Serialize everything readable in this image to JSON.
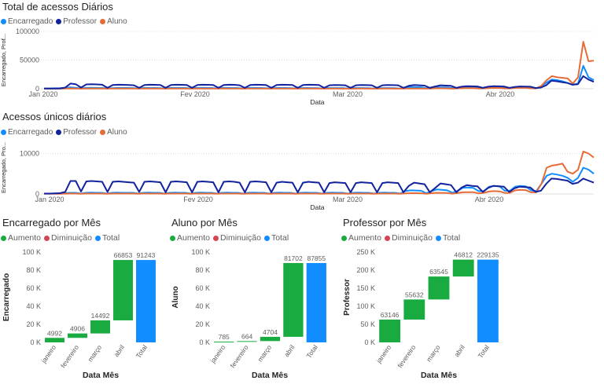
{
  "chart_data": [
    {
      "type": "line",
      "title": "Total de acessos Diários",
      "xlabel": "Data",
      "ylabel": "Encarregado, Prof...",
      "ylim": [
        0,
        100000
      ],
      "yticks": [
        "0",
        "50000",
        "100000"
      ],
      "xticks": [
        "Jan 2020",
        "Fev 2020",
        "Mar 2020",
        "Abr 2020"
      ],
      "legend_position": "top-left",
      "colors": {
        "Encarregado": "#118dff",
        "Professor": "#12239e",
        "Aluno": "#e66c37"
      },
      "series": [
        {
          "name": "Encarregado",
          "values": [
            500,
            500,
            800,
            900,
            1500,
            2500,
            1800,
            600,
            1500,
            1800,
            1500,
            1400,
            600,
            1000,
            1500,
            1500,
            1400,
            1200,
            500,
            1400,
            1500,
            1400,
            1300,
            500,
            1400,
            1500,
            1500,
            1400,
            500,
            1400,
            1600,
            1500,
            1400,
            500,
            1400,
            1500,
            1400,
            1300,
            600,
            1400,
            1500,
            1400,
            1300,
            500,
            1200,
            1500,
            1400,
            1300,
            500,
            1300,
            1400,
            1300,
            1200,
            500,
            1200,
            1300,
            1300,
            1200,
            500,
            1200,
            1300,
            1200,
            1100,
            400,
            1100,
            1200,
            1200,
            1100,
            400,
            2500,
            3000,
            2800,
            2600,
            800,
            2000,
            2500,
            2400,
            2200,
            1200,
            1500,
            2400,
            2500,
            2400,
            1500,
            1200,
            2200,
            2500,
            2300,
            1300,
            1300,
            3000,
            2800,
            2500,
            1500,
            1000,
            4000,
            11000,
            16000,
            15000,
            13000,
            10000,
            7000,
            9000,
            40000,
            20000,
            15000
          ]
        },
        {
          "name": "Professor",
          "values": [
            300,
            300,
            400,
            500,
            2000,
            9000,
            8000,
            2000,
            7500,
            8000,
            7500,
            7000,
            1500,
            6500,
            7000,
            6800,
            6500,
            6000,
            1500,
            6500,
            7000,
            6800,
            6500,
            1500,
            6500,
            7000,
            6800,
            6500,
            1500,
            6500,
            7000,
            6800,
            6500,
            1500,
            6500,
            7000,
            6800,
            6000,
            1500,
            6500,
            7000,
            6800,
            6500,
            1500,
            6500,
            7000,
            6800,
            6500,
            1500,
            6500,
            7000,
            6800,
            6500,
            1500,
            6000,
            6500,
            6300,
            6000,
            1500,
            6000,
            6500,
            6300,
            6000,
            1500,
            6000,
            6500,
            6300,
            6000,
            1500,
            5000,
            6500,
            6000,
            5500,
            1500,
            4000,
            6000,
            5500,
            5000,
            1500,
            3500,
            4500,
            4200,
            4000,
            1500,
            3500,
            4500,
            4200,
            4000,
            1500,
            3000,
            4000,
            3800,
            3500,
            1200,
            2000,
            6000,
            14000,
            13000,
            11500,
            10000,
            7000,
            8000,
            22000,
            16000,
            12000
          ]
        },
        {
          "name": "Aluno",
          "values": [
            100,
            100,
            150,
            200,
            300,
            500,
            400,
            200,
            400,
            500,
            400,
            350,
            150,
            300,
            400,
            350,
            300,
            300,
            100,
            300,
            400,
            350,
            300,
            100,
            300,
            400,
            350,
            300,
            100,
            300,
            400,
            350,
            300,
            100,
            300,
            400,
            350,
            300,
            100,
            300,
            400,
            350,
            300,
            100,
            300,
            350,
            300,
            250,
            100,
            250,
            300,
            280,
            250,
            100,
            200,
            250,
            250,
            200,
            100,
            200,
            250,
            250,
            200,
            100,
            200,
            250,
            250,
            200,
            100,
            300,
            400,
            350,
            300,
            100,
            400,
            800,
            700,
            600,
            200,
            500,
            900,
            1000,
            900,
            400,
            500,
            1200,
            1500,
            1400,
            600,
            600,
            1500,
            1600,
            1500,
            700,
            600,
            5000,
            15000,
            22000,
            20000,
            19000,
            18000,
            9000,
            20000,
            82000,
            48000,
            49000
          ]
        }
      ]
    },
    {
      "type": "line",
      "title": "Acessos únicos diários",
      "xlabel": "Data",
      "ylabel": "Encarregado, Pro...",
      "ylim": [
        0,
        13000
      ],
      "yticks": [
        "0",
        "10000"
      ],
      "xticks": [
        "Jan 2020",
        "Fev 2020",
        "Mar 2020",
        "Abr 2020"
      ],
      "legend_position": "top-left",
      "colors": {
        "Encarregado": "#118dff",
        "Professor": "#12239e",
        "Aluno": "#e66c37"
      },
      "series": [
        {
          "name": "Encarregado",
          "values": [
            100,
            100,
            100,
            150,
            200,
            300,
            300,
            100,
            300,
            350,
            300,
            300,
            100,
            300,
            350,
            300,
            300,
            300,
            100,
            300,
            350,
            300,
            300,
            100,
            300,
            350,
            300,
            300,
            100,
            300,
            350,
            300,
            300,
            100,
            300,
            350,
            300,
            300,
            100,
            300,
            350,
            300,
            300,
            100,
            300,
            350,
            300,
            300,
            100,
            300,
            350,
            300,
            300,
            100,
            300,
            350,
            300,
            300,
            100,
            300,
            350,
            300,
            300,
            100,
            300,
            350,
            300,
            300,
            100,
            700,
            900,
            850,
            800,
            200,
            700,
            1100,
            1000,
            900,
            300,
            800,
            1500,
            1600,
            1500,
            700,
            700,
            1800,
            2000,
            1900,
            800,
            800,
            1800,
            2000,
            1900,
            900,
            700,
            2500,
            4500,
            5000,
            4800,
            4500,
            4000,
            3000,
            4000,
            6500,
            6000,
            5000
          ]
        },
        {
          "name": "Professor",
          "values": [
            100,
            100,
            150,
            200,
            500,
            3200,
            3200,
            600,
            3100,
            3200,
            3100,
            3000,
            500,
            3000,
            3100,
            3000,
            2900,
            2800,
            500,
            3000,
            3100,
            3000,
            2900,
            400,
            3000,
            3100,
            3000,
            2900,
            400,
            3000,
            3100,
            3000,
            2900,
            400,
            3000,
            3100,
            3000,
            2800,
            400,
            3000,
            3100,
            3000,
            2900,
            400,
            2800,
            3000,
            2900,
            2800,
            400,
            2800,
            3000,
            2900,
            2800,
            400,
            2700,
            2900,
            2800,
            2700,
            400,
            2700,
            2900,
            2800,
            2700,
            400,
            2700,
            2900,
            2800,
            2700,
            400,
            2000,
            2800,
            2600,
            2400,
            400,
            1500,
            2600,
            2400,
            2200,
            400,
            1600,
            2200,
            2000,
            1900,
            500,
            1500,
            2000,
            1900,
            1800,
            500,
            1400,
            1800,
            1700,
            1600,
            500,
            800,
            2500,
            3800,
            3700,
            3500,
            3300,
            2500,
            2800,
            3800,
            3300,
            2800
          ]
        },
        {
          "name": "Aluno",
          "values": [
            50,
            50,
            50,
            60,
            80,
            100,
            100,
            50,
            100,
            100,
            100,
            100,
            50,
            100,
            100,
            100,
            100,
            100,
            50,
            100,
            100,
            100,
            100,
            50,
            100,
            100,
            100,
            100,
            50,
            100,
            100,
            100,
            100,
            50,
            100,
            100,
            100,
            100,
            50,
            100,
            100,
            100,
            100,
            50,
            100,
            100,
            100,
            100,
            50,
            100,
            100,
            100,
            100,
            50,
            100,
            100,
            100,
            100,
            50,
            100,
            100,
            100,
            100,
            50,
            100,
            100,
            100,
            100,
            50,
            150,
            200,
            200,
            180,
            60,
            200,
            300,
            280,
            260,
            80,
            250,
            400,
            450,
            420,
            150,
            300,
            600,
            700,
            650,
            250,
            300,
            900,
            1000,
            950,
            400,
            400,
            2500,
            6500,
            7000,
            7200,
            7500,
            5500,
            5000,
            6000,
            10500,
            10000,
            9000
          ]
        }
      ]
    },
    {
      "type": "waterfall",
      "title": "Encarregado por Mês",
      "xlabel": "Data Mês",
      "ylabel": "Encarregado",
      "ylim": [
        0,
        100000
      ],
      "yticks": [
        "0 K",
        "20 K",
        "40 K",
        "60 K",
        "80 K",
        "100 K"
      ],
      "legend": [
        "Aumento",
        "Diminuição",
        "Total"
      ],
      "colors": {
        "Aumento": "#1aab40",
        "Diminuição": "#d64554",
        "Total": "#118dff"
      },
      "categories": [
        "janeiro",
        "fevereiro",
        "março",
        "abril",
        "Total"
      ],
      "values": [
        4992,
        4906,
        14492,
        66853,
        91243
      ],
      "labels": [
        "4992",
        "4906",
        "14492",
        "66853",
        "91243"
      ]
    },
    {
      "type": "waterfall",
      "title": "Aluno por Mês",
      "xlabel": "Data Mês",
      "ylabel": "Aluno",
      "ylim": [
        0,
        100000
      ],
      "yticks": [
        "0 K",
        "20 K",
        "40 K",
        "60 K",
        "80 K",
        "100 K"
      ],
      "legend": [
        "Aumento",
        "Diminuição",
        "Total"
      ],
      "colors": {
        "Aumento": "#1aab40",
        "Diminuição": "#d64554",
        "Total": "#118dff"
      },
      "categories": [
        "janeiro",
        "fevereiro",
        "março",
        "abril",
        "Total"
      ],
      "values": [
        785,
        664,
        4704,
        81702,
        87855
      ],
      "labels": [
        "785",
        "664",
        "4704",
        "81702",
        "87855"
      ]
    },
    {
      "type": "waterfall",
      "title": "Professor por Mês",
      "xlabel": "Data Mês",
      "ylabel": "Professor",
      "ylim": [
        0,
        250000
      ],
      "yticks": [
        "0 K",
        "50 K",
        "100 K",
        "150 K",
        "200 K",
        "250 K"
      ],
      "legend": [
        "Aumento",
        "Diminuição",
        "Total"
      ],
      "colors": {
        "Aumento": "#1aab40",
        "Diminuição": "#d64554",
        "Total": "#118dff"
      },
      "categories": [
        "janeiro",
        "fevereiro",
        "março",
        "abril",
        "Total"
      ],
      "values": [
        63146,
        55632,
        63545,
        46812,
        229135
      ],
      "labels": [
        "63146",
        "55632",
        "63545",
        "46812",
        "229135"
      ]
    }
  ]
}
